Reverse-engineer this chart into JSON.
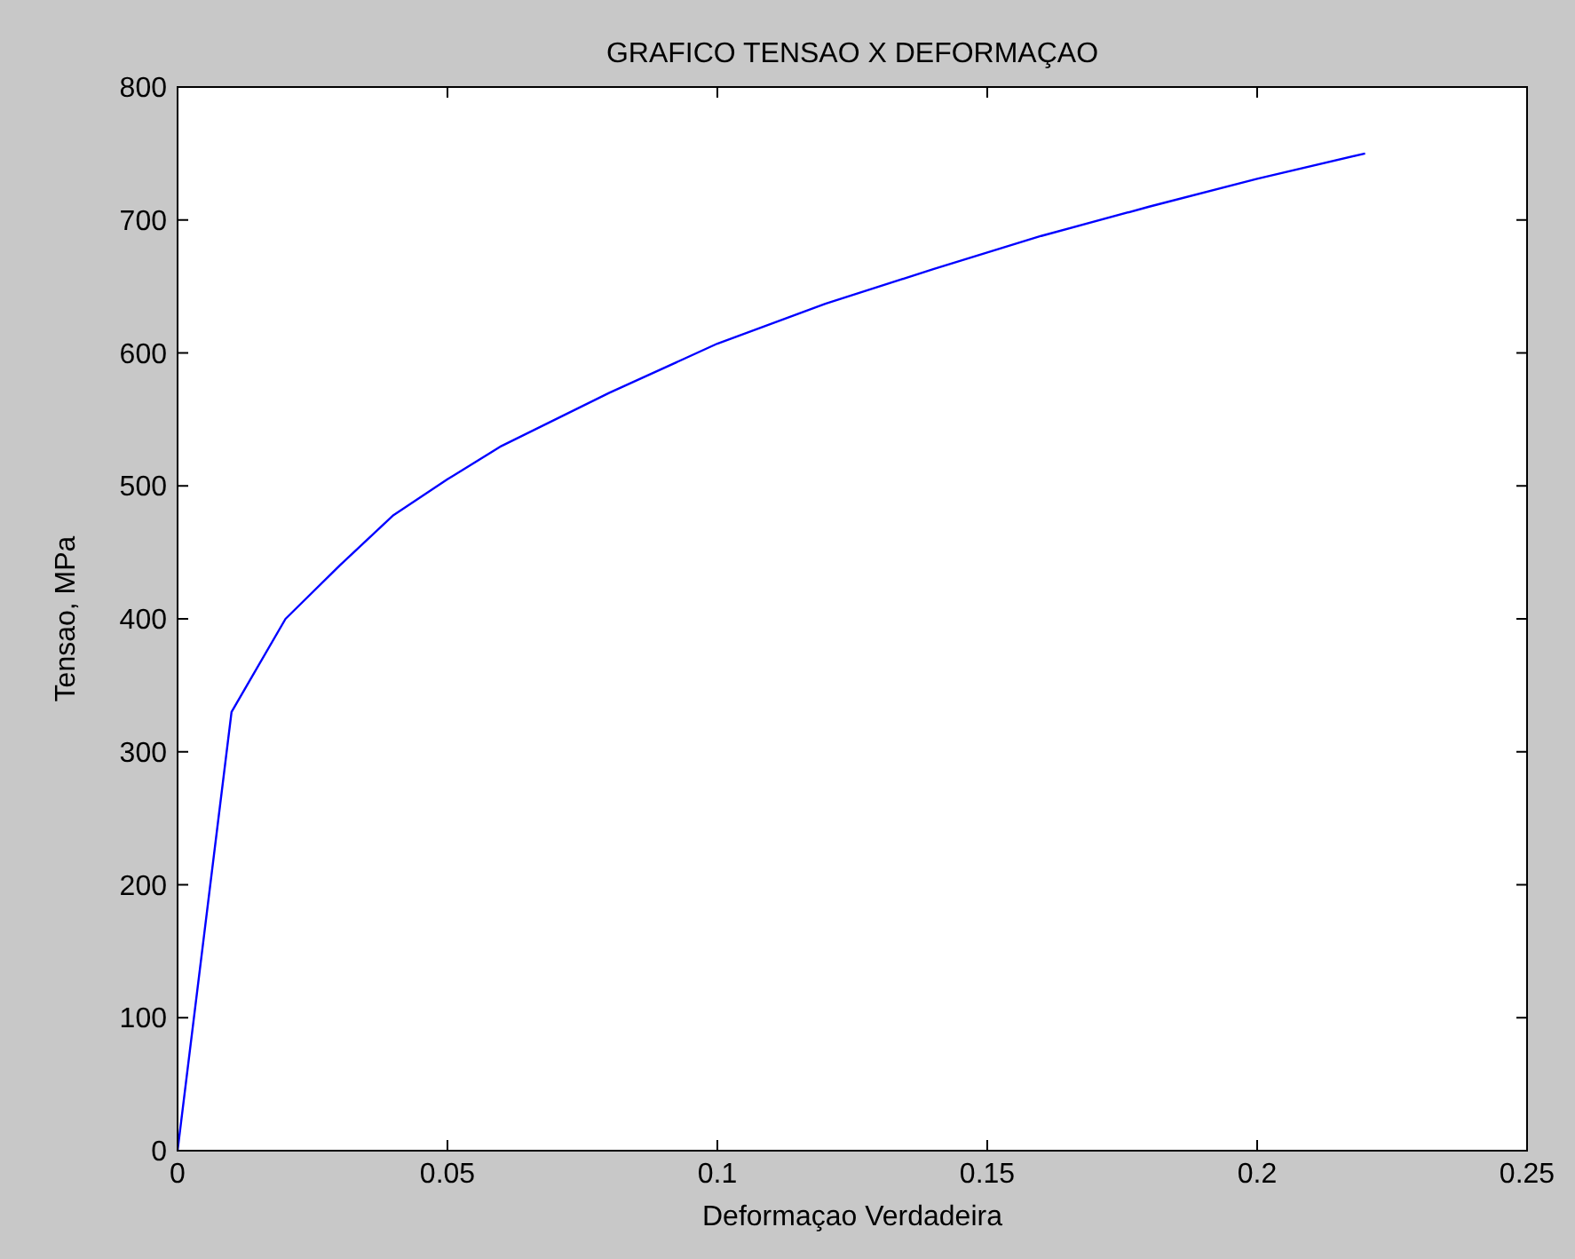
{
  "chart_data": {
    "type": "line",
    "title": "GRAFICO TENSAO X DEFORMAÇAO",
    "xlabel": "Deformaçao Verdadeira",
    "ylabel": "Tensao, MPa",
    "x": [
      0,
      0.01,
      0.02,
      0.03,
      0.04,
      0.05,
      0.06,
      0.08,
      0.1,
      0.12,
      0.14,
      0.16,
      0.18,
      0.2,
      0.22
    ],
    "series": [
      {
        "color": "#0000ff",
        "values": [
          0,
          330,
          400,
          440,
          478,
          505,
          530,
          570,
          607,
          637,
          663,
          688,
          710,
          731,
          750
        ]
      }
    ],
    "xlim": [
      0,
      0.25
    ],
    "xticks": [
      0,
      0.05,
      0.1,
      0.15,
      0.2,
      0.25
    ],
    "ylim": [
      0,
      800
    ],
    "yticks": [
      0,
      100,
      200,
      300,
      400,
      500,
      600,
      700,
      800
    ],
    "grid": false,
    "marker": "none",
    "line_style": "solid"
  }
}
